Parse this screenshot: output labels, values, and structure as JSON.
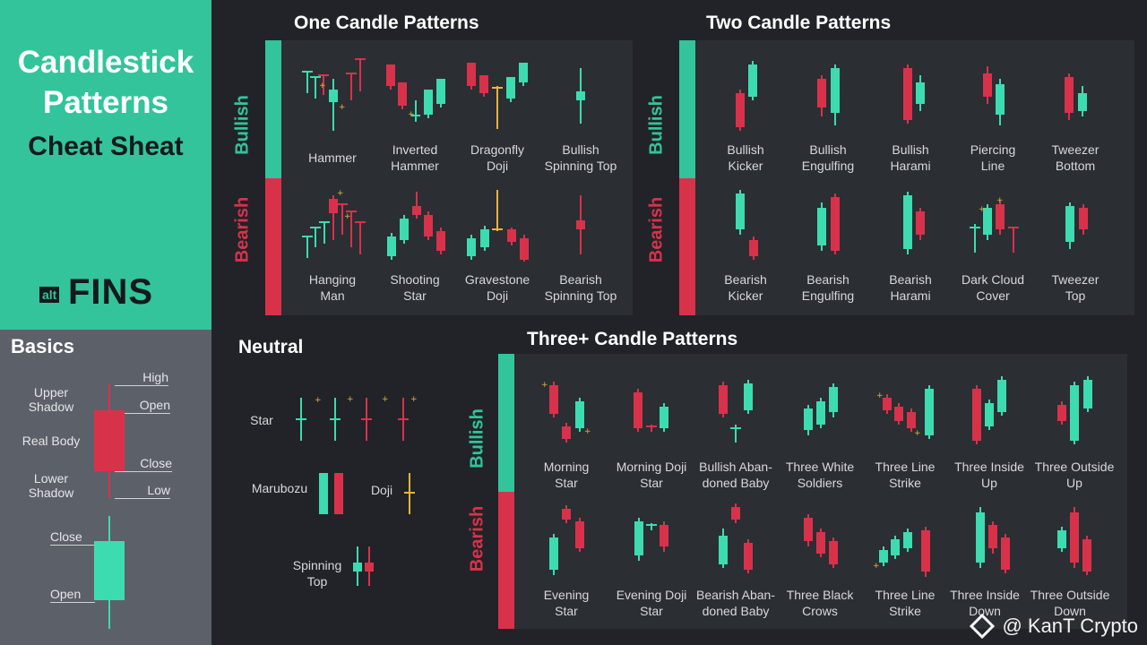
{
  "sidebar": {
    "title_line1": "Candlestick",
    "title_line2": "Patterns",
    "subtitle": "Cheat Sheat",
    "brand_small": "alt",
    "brand_big": "FINS",
    "basics_title": "Basics",
    "upper_shadow": "Upper Shadow",
    "real_body": "Real Body",
    "lower_shadow": "Lower Shadow",
    "high": "High",
    "open": "Open",
    "close": "Close",
    "low": "Low",
    "bull_close": "Close",
    "bull_open": "Open"
  },
  "sections": {
    "one": "One Candle Patterns",
    "two": "Two Candle Patterns",
    "neutral": "Neutral",
    "three": "Three+ Candle Patterns"
  },
  "side_labels": {
    "bullish": "Bullish",
    "bearish": "Bearish"
  },
  "one_candle": {
    "bullish": [
      "Hammer",
      "Inverted Hammer",
      "Dragonfly Doji",
      "Bullish Spinning Top"
    ],
    "bearish": [
      "Hanging Man",
      "Shooting Star",
      "Gravestone Doji",
      "Bearish Spinning Top"
    ]
  },
  "two_candle": {
    "bullish": [
      "Bullish Kicker",
      "Bullish Engulfing",
      "Bullish Harami",
      "Piercing Line",
      "Tweezer Bottom"
    ],
    "bearish": [
      "Bearish Kicker",
      "Bearish Engulfing",
      "Bearish Harami",
      "Dark Cloud Cover",
      "Tweezer Top"
    ]
  },
  "neutral": {
    "star": "Star",
    "marubozu": "Marubozu",
    "doji": "Doji",
    "spinning_top": "Spinning Top"
  },
  "three_candle": {
    "bullish": [
      "Morning Star",
      "Morning Doji Star",
      "Bullish Aban-doned Baby",
      "Three White Soldiers",
      "Three Line Strike",
      "Three Inside Up",
      "Three Outside Up"
    ],
    "bearish": [
      "Evening Star",
      "Evening Doji Star",
      "Bearish Aban-doned Baby",
      "Three Black Crows",
      "Three Line Strike",
      "Three Inside Down",
      "Three Outside Down"
    ]
  },
  "watermark": "@ KanT Crypto",
  "colors": {
    "green": "#3ddbb0",
    "red": "#d8324b",
    "yellow": "#e8b43a",
    "teal_bg": "#33c49c",
    "dark_bg": "#212328",
    "panel_bg": "#2b2e33",
    "basics_bg": "#5c6068"
  }
}
